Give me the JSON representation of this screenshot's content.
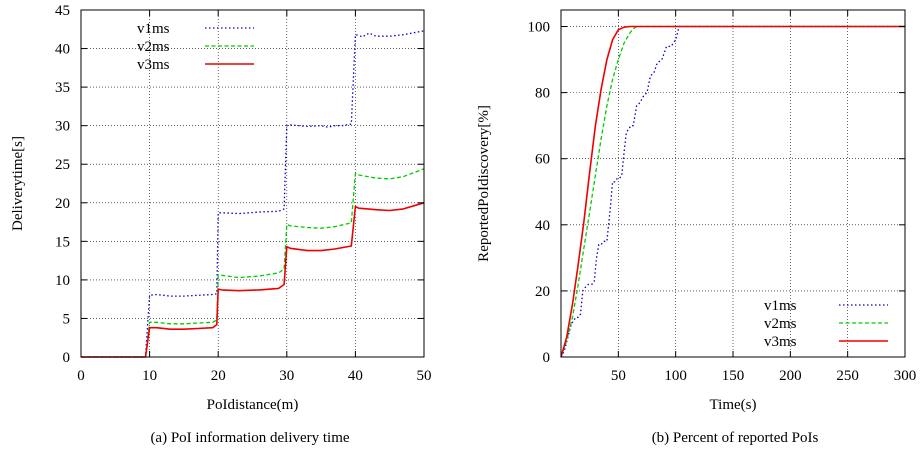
{
  "chart_data": [
    {
      "type": "line",
      "caption": "(a) PoI information delivery time",
      "xlabel": "PoIdistance(m)",
      "ylabel": "Deliverytime[s]",
      "xlim": [
        0,
        50
      ],
      "ylim": [
        0,
        45
      ],
      "xticks": [
        0,
        10,
        20,
        30,
        40,
        50
      ],
      "yticks": [
        0,
        5,
        10,
        15,
        20,
        25,
        30,
        35,
        40,
        45
      ],
      "grid": true,
      "legend_position": "top-left",
      "series": [
        {
          "name": "v1ms",
          "color": "#0000cc",
          "dash": "1.5 2.5",
          "x": [
            0,
            9.4,
            10,
            11,
            13,
            15,
            17,
            19.2,
            19.8,
            20,
            20.5,
            23,
            26,
            28.8,
            29.6,
            30,
            30.5,
            33,
            35,
            36,
            37,
            38,
            39.4,
            40,
            40.5,
            41,
            42,
            43,
            45,
            47,
            50
          ],
          "y": [
            0,
            0,
            8,
            8.1,
            7.9,
            7.9,
            8.0,
            8.1,
            8.2,
            18.7,
            18.7,
            18.6,
            18.8,
            18.9,
            19.2,
            30.0,
            30.1,
            29.9,
            30.0,
            29.8,
            30.0,
            30.0,
            30.2,
            41.8,
            41.7,
            41.5,
            42.0,
            41.6,
            41.6,
            41.8,
            42.3
          ]
        },
        {
          "name": "v2ms",
          "color": "#00cc00",
          "dash": "4 2.5",
          "x": [
            0,
            9.4,
            10,
            11,
            13,
            15,
            17,
            19.2,
            19.8,
            20,
            20.5,
            23,
            26,
            28.8,
            29.6,
            30,
            30.5,
            33,
            35,
            37,
            39.4,
            40,
            40.5,
            43,
            45,
            47,
            50
          ],
          "y": [
            0,
            0,
            4.5,
            4.5,
            4.3,
            4.3,
            4.4,
            4.5,
            4.8,
            10.5,
            10.6,
            10.3,
            10.5,
            10.9,
            11.4,
            17.2,
            17.0,
            16.8,
            16.7,
            16.9,
            17.4,
            23.8,
            23.6,
            23.2,
            23.1,
            23.4,
            24.4
          ]
        },
        {
          "name": "v3ms",
          "color": "#ee0000",
          "dash": "",
          "x": [
            0,
            9.4,
            10,
            11,
            13,
            15,
            17,
            19.2,
            19.8,
            20,
            20.5,
            23,
            26,
            28.8,
            29.6,
            30,
            30.5,
            33,
            35,
            37,
            39.4,
            40,
            40.5,
            43,
            45,
            47,
            50
          ],
          "y": [
            0,
            0,
            3.8,
            3.8,
            3.6,
            3.6,
            3.7,
            3.8,
            4.2,
            8.8,
            8.7,
            8.6,
            8.7,
            8.9,
            9.4,
            14.3,
            14.1,
            13.8,
            13.8,
            14.0,
            14.4,
            19.5,
            19.3,
            19.1,
            19.0,
            19.2,
            20.0
          ]
        }
      ]
    },
    {
      "type": "line",
      "caption": "(b) Percent of reported PoIs",
      "xlabel": "Time(s)",
      "ylabel": "ReportedPoIdiscovery[%]",
      "xlim": [
        0,
        300
      ],
      "ylim": [
        0,
        105
      ],
      "xticks": [
        50,
        100,
        150,
        200,
        250,
        300
      ],
      "yticks": [
        0,
        20,
        40,
        60,
        80,
        100
      ],
      "grid": true,
      "legend_position": "bottom-right",
      "series": [
        {
          "name": "v1ms",
          "color": "#0000cc",
          "dash": "1.5 2.5",
          "x": [
            0,
            3,
            6,
            9,
            11,
            13,
            15,
            17,
            19,
            21,
            24,
            27,
            29,
            31,
            33,
            35,
            37,
            40,
            43,
            45,
            47,
            49,
            51,
            53,
            55,
            57,
            59,
            61,
            63,
            66,
            69,
            72,
            75,
            78,
            81,
            84,
            88,
            92,
            96,
            100,
            103,
            106,
            110,
            150,
            200,
            250,
            300
          ],
          "y": [
            0,
            2,
            6,
            10,
            11,
            12,
            12,
            13,
            20,
            21,
            22,
            22,
            23,
            30,
            34,
            34,
            35,
            35,
            45,
            53,
            53,
            54,
            54,
            55,
            62,
            68,
            69,
            70,
            70,
            76,
            77,
            79,
            80,
            85,
            86,
            89,
            90,
            94,
            94,
            96,
            100,
            100,
            100,
            100,
            100,
            100,
            100
          ]
        },
        {
          "name": "v2ms",
          "color": "#00cc00",
          "dash": "4 2.5",
          "x": [
            0,
            5,
            10,
            15,
            20,
            25,
            30,
            35,
            40,
            45,
            50,
            55,
            60,
            63,
            66,
            70,
            80,
            150,
            200,
            250,
            300
          ],
          "y": [
            0,
            5,
            12,
            22,
            33,
            44,
            55,
            66,
            76,
            84,
            90,
            95,
            98,
            99.3,
            100,
            100,
            100,
            100,
            100,
            100,
            100
          ]
        },
        {
          "name": "v3ms",
          "color": "#ee0000",
          "dash": "",
          "x": [
            0,
            5,
            10,
            15,
            20,
            25,
            30,
            35,
            40,
            45,
            50,
            55,
            60,
            70,
            80,
            150,
            200,
            250,
            300
          ],
          "y": [
            0,
            6,
            16,
            28,
            41,
            56,
            70,
            81,
            90,
            96,
            99,
            99.8,
            100,
            100,
            100,
            100,
            100,
            100,
            100
          ]
        }
      ]
    }
  ]
}
